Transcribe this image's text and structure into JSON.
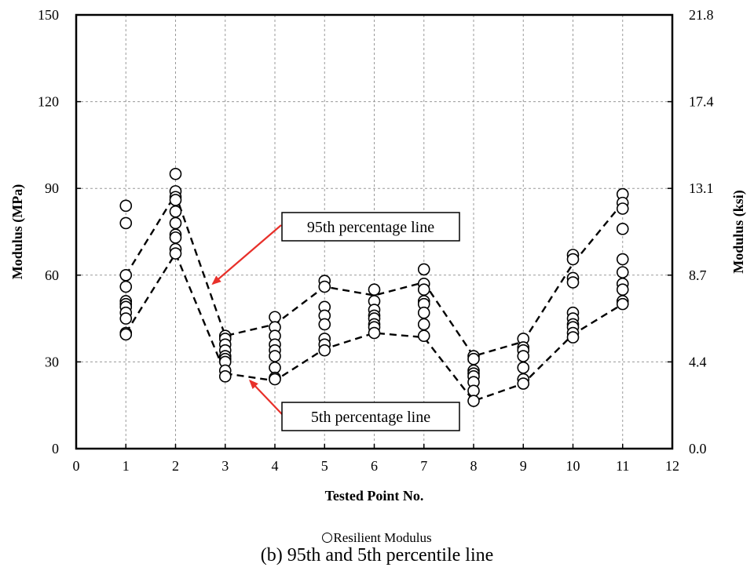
{
  "chart_data": {
    "type": "scatter",
    "title": "",
    "caption": "(b) 95th and 5th percentile line",
    "xlabel": "Tested Point No.",
    "ylabel": "Modulus (MPa)",
    "y2label": "Modulus (ksi)",
    "xlim": [
      0,
      12
    ],
    "ylim": [
      0,
      150
    ],
    "xticks": [
      0,
      1,
      2,
      3,
      4,
      5,
      6,
      7,
      8,
      9,
      10,
      11,
      12
    ],
    "yticks": [
      0,
      30,
      60,
      90,
      120,
      150
    ],
    "y2ticks": [
      "0.0",
      "4.4",
      "8.7",
      "13.1",
      "17.4",
      "21.8"
    ],
    "grid": true,
    "legend": {
      "placement": "bottom-center",
      "entries": [
        "Resilient Modulus"
      ]
    },
    "series": [
      {
        "name": "Resilient Modulus",
        "marker": "open-circle",
        "points": [
          [
            1,
            84
          ],
          [
            1,
            78
          ],
          [
            1,
            60
          ],
          [
            1,
            56
          ],
          [
            1,
            51
          ],
          [
            1,
            50
          ],
          [
            1,
            49
          ],
          [
            1,
            47
          ],
          [
            1,
            45
          ],
          [
            1,
            40
          ],
          [
            1,
            39.5
          ],
          [
            2,
            95
          ],
          [
            2,
            89
          ],
          [
            2,
            87
          ],
          [
            2,
            86
          ],
          [
            2,
            82
          ],
          [
            2,
            78
          ],
          [
            2,
            74
          ],
          [
            2,
            73
          ],
          [
            2,
            69
          ],
          [
            2,
            67.5
          ],
          [
            3,
            39
          ],
          [
            3,
            38
          ],
          [
            3,
            36
          ],
          [
            3,
            34
          ],
          [
            3,
            32
          ],
          [
            3,
            31
          ],
          [
            3,
            30
          ],
          [
            3,
            27
          ],
          [
            3,
            25
          ],
          [
            4,
            45.5
          ],
          [
            4,
            42
          ],
          [
            4,
            39
          ],
          [
            4,
            36
          ],
          [
            4,
            34
          ],
          [
            4,
            32
          ],
          [
            4,
            28
          ],
          [
            4,
            24.5
          ],
          [
            4,
            24
          ],
          [
            5,
            58
          ],
          [
            5,
            56
          ],
          [
            5,
            49
          ],
          [
            5,
            46
          ],
          [
            5,
            43
          ],
          [
            5,
            38
          ],
          [
            5,
            36
          ],
          [
            5,
            34
          ],
          [
            6,
            55
          ],
          [
            6,
            51
          ],
          [
            6,
            48
          ],
          [
            6,
            46
          ],
          [
            6,
            45
          ],
          [
            6,
            43
          ],
          [
            6,
            42
          ],
          [
            6,
            40
          ],
          [
            7,
            62
          ],
          [
            7,
            57
          ],
          [
            7,
            55
          ],
          [
            7,
            51
          ],
          [
            7,
            50
          ],
          [
            7,
            47
          ],
          [
            7,
            43
          ],
          [
            7,
            39
          ],
          [
            8,
            32
          ],
          [
            8,
            31
          ],
          [
            8,
            27
          ],
          [
            8,
            26
          ],
          [
            8,
            25
          ],
          [
            8,
            23
          ],
          [
            8,
            20
          ],
          [
            8,
            16.5
          ],
          [
            9,
            38
          ],
          [
            9,
            35
          ],
          [
            9,
            34
          ],
          [
            9,
            32
          ],
          [
            9,
            28
          ],
          [
            9,
            24
          ],
          [
            9,
            22.5
          ],
          [
            10,
            67
          ],
          [
            10,
            65.5
          ],
          [
            10,
            59
          ],
          [
            10,
            57.5
          ],
          [
            10,
            47
          ],
          [
            10,
            45
          ],
          [
            10,
            43
          ],
          [
            10,
            42
          ],
          [
            10,
            40
          ],
          [
            10,
            38.5
          ],
          [
            11,
            88
          ],
          [
            11,
            85
          ],
          [
            11,
            83
          ],
          [
            11,
            76
          ],
          [
            11,
            65.5
          ],
          [
            11,
            61
          ],
          [
            11,
            57
          ],
          [
            11,
            55
          ],
          [
            11,
            51
          ],
          [
            11,
            50
          ]
        ]
      },
      {
        "name": "95th percentage line",
        "style": "dashed",
        "x": [
          1,
          2,
          3,
          4,
          5,
          6,
          7,
          8,
          9,
          10,
          11
        ],
        "values": [
          60,
          88,
          39,
          43,
          56,
          53,
          57.5,
          32,
          37,
          64,
          85
        ]
      },
      {
        "name": "5th percentage line",
        "style": "dashed",
        "x": [
          1,
          2,
          3,
          4,
          5,
          6,
          7,
          8,
          9,
          10,
          11
        ],
        "values": [
          40,
          67.5,
          26,
          23.5,
          34.5,
          40,
          38.5,
          16.5,
          22.5,
          39.5,
          50
        ]
      }
    ],
    "annotations": [
      {
        "text": "95th percentage line",
        "points_to": [
          2.75,
          57
        ]
      },
      {
        "text": "5th percentage line",
        "points_to": [
          3.5,
          23.5
        ]
      }
    ]
  }
}
